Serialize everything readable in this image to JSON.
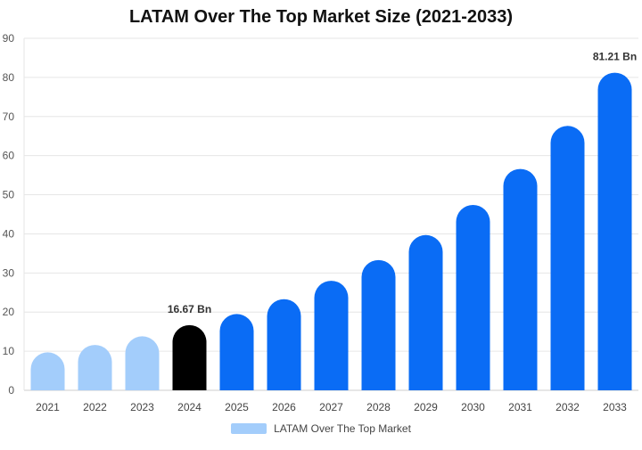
{
  "chart_data": {
    "type": "bar",
    "title": "LATAM Over The Top Market Size (2021-2033)",
    "categories": [
      "2021",
      "2022",
      "2023",
      "2024",
      "2025",
      "2026",
      "2027",
      "2028",
      "2029",
      "2030",
      "2031",
      "2032",
      "2033"
    ],
    "series": [
      {
        "name": "LATAM Over The Top Market",
        "values": [
          9.7,
          11.6,
          13.8,
          16.67,
          19.5,
          23.3,
          28.0,
          33.3,
          39.7,
          47.4,
          56.6,
          67.6,
          81.21
        ]
      }
    ],
    "ylim": [
      0,
      90
    ],
    "yticks": [
      0,
      10,
      20,
      30,
      40,
      50,
      60,
      70,
      80,
      90
    ],
    "grid": true,
    "legend_position": "bottom",
    "data_labels": [
      {
        "index": 3,
        "text": "16.67 Bn"
      },
      {
        "index": 12,
        "text": "81.21 Bn"
      }
    ],
    "colors": {
      "historical": "#a3cdfb",
      "current": "#000000",
      "forecast": "#0a6cf5",
      "legend_swatch": "#a3cdfb",
      "grid": "#e6e6e6",
      "axis": "#cccccc"
    }
  }
}
